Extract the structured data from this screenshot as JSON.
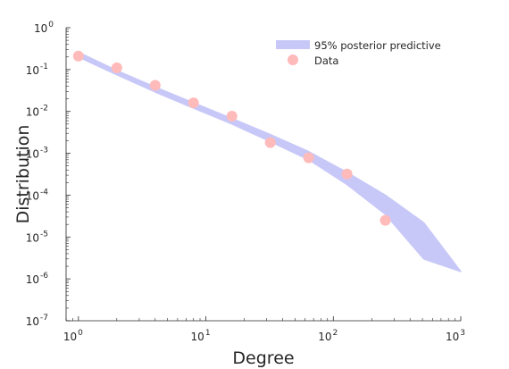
{
  "chart_data": {
    "type": "scatter",
    "xlabel": "Degree",
    "ylabel": "Distribution",
    "xscale": "log",
    "yscale": "log",
    "xlim": [
      0.8,
      1000
    ],
    "ylim": [
      1e-07,
      1
    ],
    "x_ticks": [
      {
        "base": "10",
        "exp": "0",
        "value": 1
      },
      {
        "base": "10",
        "exp": "1",
        "value": 10
      },
      {
        "base": "10",
        "exp": "2",
        "value": 100
      },
      {
        "base": "10",
        "exp": "3",
        "value": 1000
      }
    ],
    "y_ticks": [
      {
        "base": "10",
        "exp": "0",
        "value": 1
      },
      {
        "base": "10",
        "exp": "-1",
        "value": 0.1
      },
      {
        "base": "10",
        "exp": "-2",
        "value": 0.01
      },
      {
        "base": "10",
        "exp": "-3",
        "value": 0.001
      },
      {
        "base": "10",
        "exp": "-4",
        "value": 0.0001
      },
      {
        "base": "10",
        "exp": "-5",
        "value": 1e-05
      },
      {
        "base": "10",
        "exp": "-6",
        "value": 1e-06
      },
      {
        "base": "10",
        "exp": "-7",
        "value": 1e-07
      }
    ],
    "legend": {
      "placement": "top-right",
      "entries": [
        "95% posterior predictive",
        "Data"
      ]
    },
    "series": [
      {
        "name": "95% posterior predictive",
        "kind": "band",
        "color": "#c8c8f8",
        "x": [
          1,
          2,
          4,
          8,
          16,
          32,
          64,
          128,
          256,
          512,
          1000
        ],
        "upper": [
          0.26,
          0.095,
          0.038,
          0.016,
          0.0068,
          0.0028,
          0.0011,
          0.00035,
          0.0001,
          2.2e-05,
          1.5e-06
        ],
        "lower": [
          0.2,
          0.075,
          0.029,
          0.012,
          0.005,
          0.0019,
          0.0007,
          0.00018,
          3.5e-05,
          3e-06,
          1.5e-06
        ]
      },
      {
        "name": "Data",
        "kind": "points",
        "color": "#ffbaba",
        "x": [
          1,
          2,
          4,
          8,
          16,
          32,
          64,
          128,
          256
        ],
        "y": [
          0.21,
          0.11,
          0.042,
          0.016,
          0.0077,
          0.0018,
          0.00078,
          0.00032,
          2.5e-05
        ]
      }
    ]
  }
}
